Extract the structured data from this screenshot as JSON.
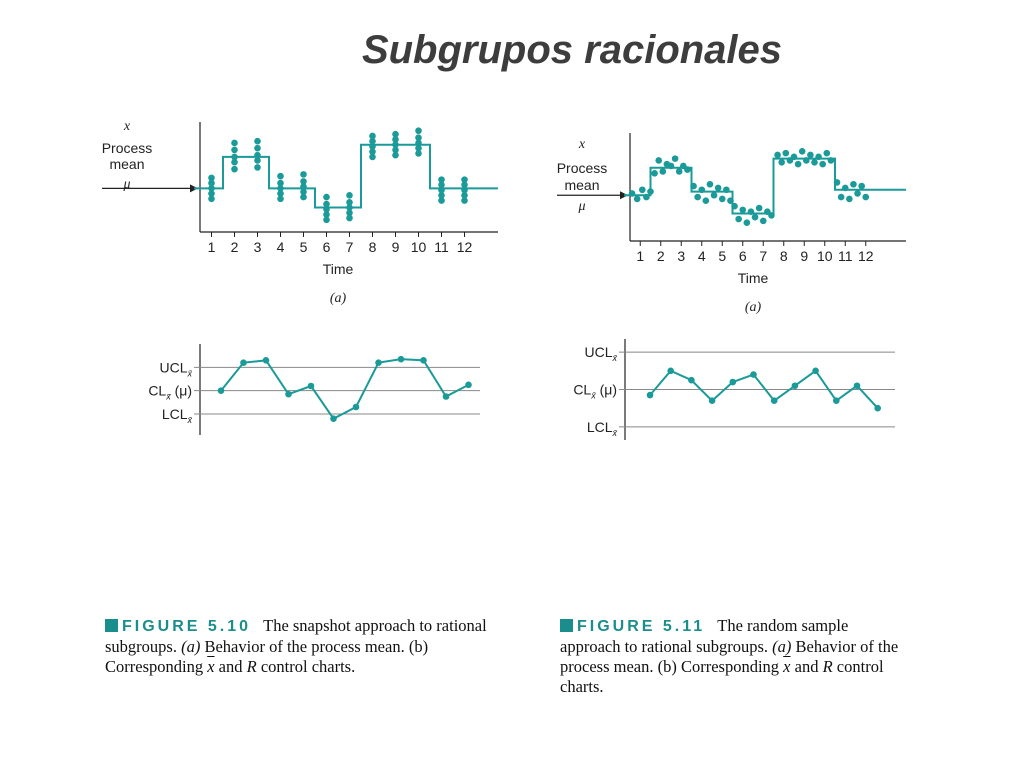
{
  "slide_title": "Subgrupos racionales",
  "colors": {
    "teal": "#1a9a98",
    "axis": "#222222",
    "grid": "#888888",
    "caption_accent": "#1a8e8c"
  },
  "chart_data": [
    {
      "id": "fig510a",
      "type": "scatter",
      "ylabel_lines": [
        "x",
        "Process",
        "mean",
        "μ"
      ],
      "xlabel": "Time",
      "panel_label": "(a)",
      "categories": [
        "1",
        "2",
        "3",
        "4",
        "5",
        "6",
        "7",
        "8",
        "9",
        "10",
        "11",
        "12"
      ],
      "process_mean_levels": [
        0,
        1.8,
        1.8,
        0,
        0,
        -1.1,
        -1.1,
        2.5,
        2.5,
        2.5,
        0,
        0
      ],
      "points": [
        [
          1,
          -0.6
        ],
        [
          1,
          -0.3
        ],
        [
          1,
          0
        ],
        [
          1,
          0.3
        ],
        [
          1,
          0.6
        ],
        [
          2,
          1.1
        ],
        [
          2,
          1.5
        ],
        [
          2,
          1.8
        ],
        [
          2,
          2.2
        ],
        [
          2,
          2.6
        ],
        [
          3,
          1.2
        ],
        [
          3,
          1.6
        ],
        [
          3,
          1.9
        ],
        [
          3,
          2.3
        ],
        [
          3,
          2.7
        ],
        [
          4,
          -0.6
        ],
        [
          4,
          -0.3
        ],
        [
          4,
          0
        ],
        [
          4,
          0.3
        ],
        [
          4,
          0.7
        ],
        [
          5,
          -0.5
        ],
        [
          5,
          -0.2
        ],
        [
          5,
          0.1
        ],
        [
          5,
          0.4
        ],
        [
          5,
          0.8
        ],
        [
          6,
          -1.8
        ],
        [
          6,
          -1.5
        ],
        [
          6,
          -1.2
        ],
        [
          6,
          -0.9
        ],
        [
          6,
          -0.5
        ],
        [
          7,
          -1.7
        ],
        [
          7,
          -1.4
        ],
        [
          7,
          -1.1
        ],
        [
          7,
          -0.8
        ],
        [
          7,
          -0.4
        ],
        [
          8,
          1.8
        ],
        [
          8,
          2.1
        ],
        [
          8,
          2.4
        ],
        [
          8,
          2.7
        ],
        [
          8,
          3.0
        ],
        [
          9,
          1.9
        ],
        [
          9,
          2.2
        ],
        [
          9,
          2.5
        ],
        [
          9,
          2.8
        ],
        [
          9,
          3.1
        ],
        [
          10,
          2.0
        ],
        [
          10,
          2.3
        ],
        [
          10,
          2.6
        ],
        [
          10,
          2.9
        ],
        [
          10,
          3.3
        ],
        [
          11,
          -0.7
        ],
        [
          11,
          -0.4
        ],
        [
          11,
          -0.1
        ],
        [
          11,
          0.2
        ],
        [
          11,
          0.5
        ],
        [
          12,
          -0.7
        ],
        [
          12,
          -0.4
        ],
        [
          12,
          -0.1
        ],
        [
          12,
          0.2
        ],
        [
          12,
          0.5
        ]
      ],
      "ylim": [
        -2.5,
        3.8
      ]
    },
    {
      "id": "fig510b",
      "type": "line",
      "control_limits": {
        "ucl": "UCL",
        "cl": "CL",
        "cl_suffix": "(μ)",
        "lcl": "LCL",
        "subscript_symbol": "x̄"
      },
      "x": [
        1,
        2,
        3,
        4,
        5,
        6,
        7,
        8,
        9,
        10,
        11,
        12
      ],
      "values": [
        0,
        1.2,
        1.3,
        -0.15,
        0.2,
        -1.2,
        -0.7,
        1.2,
        1.35,
        1.3,
        -0.25,
        0.25
      ],
      "limit_values": {
        "ucl": 1.0,
        "cl": 0,
        "lcl": -1.0
      },
      "ylim": [
        -1.9,
        2.0
      ]
    },
    {
      "id": "fig511a",
      "type": "scatter",
      "ylabel_lines": [
        "x",
        "Process",
        "mean",
        "μ"
      ],
      "xlabel": "Time",
      "panel_label": "(a)",
      "categories": [
        "1",
        "2",
        "3",
        "4",
        "5",
        "6",
        "7",
        "8",
        "9",
        "10",
        "11",
        "12"
      ],
      "process_mean_levels": [
        0,
        1.5,
        1.5,
        0.2,
        0.2,
        -1.0,
        -1.0,
        2.0,
        2.0,
        2.0,
        0.3,
        0.3
      ],
      "points": [
        [
          0.6,
          0.1
        ],
        [
          0.85,
          -0.2
        ],
        [
          1.1,
          0.3
        ],
        [
          1.3,
          -0.1
        ],
        [
          1.5,
          0.2
        ],
        [
          1.7,
          1.2
        ],
        [
          1.9,
          1.9
        ],
        [
          2.1,
          1.3
        ],
        [
          2.3,
          1.7
        ],
        [
          2.5,
          1.6
        ],
        [
          2.7,
          2.0
        ],
        [
          2.9,
          1.3
        ],
        [
          3.1,
          1.6
        ],
        [
          3.3,
          1.4
        ],
        [
          3.6,
          0.5
        ],
        [
          3.8,
          -0.1
        ],
        [
          4.0,
          0.3
        ],
        [
          4.2,
          -0.3
        ],
        [
          4.4,
          0.6
        ],
        [
          4.6,
          0.0
        ],
        [
          4.8,
          0.4
        ],
        [
          5.0,
          -0.2
        ],
        [
          5.2,
          0.3
        ],
        [
          5.4,
          -0.3
        ],
        [
          5.6,
          -0.6
        ],
        [
          5.8,
          -1.3
        ],
        [
          6.0,
          -0.8
        ],
        [
          6.2,
          -1.5
        ],
        [
          6.4,
          -0.9
        ],
        [
          6.6,
          -1.2
        ],
        [
          6.8,
          -0.7
        ],
        [
          7.0,
          -1.4
        ],
        [
          7.2,
          -0.9
        ],
        [
          7.4,
          -1.1
        ],
        [
          7.7,
          2.2
        ],
        [
          7.9,
          1.8
        ],
        [
          8.1,
          2.3
        ],
        [
          8.3,
          1.9
        ],
        [
          8.5,
          2.1
        ],
        [
          8.7,
          1.7
        ],
        [
          8.9,
          2.4
        ],
        [
          9.1,
          1.9
        ],
        [
          9.3,
          2.2
        ],
        [
          9.5,
          1.8
        ],
        [
          9.7,
          2.1
        ],
        [
          9.9,
          1.7
        ],
        [
          10.1,
          2.3
        ],
        [
          10.3,
          1.9
        ],
        [
          10.6,
          0.7
        ],
        [
          10.8,
          -0.1
        ],
        [
          11.0,
          0.4
        ],
        [
          11.2,
          -0.2
        ],
        [
          11.4,
          0.6
        ],
        [
          11.6,
          0.1
        ],
        [
          11.8,
          0.5
        ],
        [
          12.0,
          -0.1
        ]
      ],
      "ylim": [
        -2.5,
        3.4
      ]
    },
    {
      "id": "fig511b",
      "type": "line",
      "control_limits": {
        "ucl": "UCL",
        "cl": "CL",
        "cl_suffix": "(μ)",
        "lcl": "LCL",
        "subscript_symbol": "x̄"
      },
      "x": [
        1,
        2,
        3,
        4,
        5,
        6,
        7,
        8,
        9,
        10,
        11,
        12
      ],
      "values": [
        -0.15,
        0.5,
        0.25,
        -0.3,
        0.2,
        0.4,
        -0.3,
        0.1,
        0.5,
        -0.3,
        0.1,
        -0.5
      ],
      "limit_values": {
        "ucl": 1.0,
        "cl": 0,
        "lcl": -1.0
      },
      "ylim": [
        -1.35,
        1.35
      ]
    }
  ],
  "captions": [
    {
      "figure_label": "FIGURE 5.10",
      "text_1": "The snapshot approach to rational subgroups. ",
      "part_a": "(a)",
      "text_2": " Behavior of the process mean. ",
      "part_b": "(b)",
      "text_3": " Corresponding ",
      "xbar": "x",
      "text_4": " and ",
      "r": "R",
      "text_5": " control charts."
    },
    {
      "figure_label": "FIGURE 5.11",
      "text_1": "The random sample approach to rational subgroups. ",
      "part_a": "(a)",
      "text_2": " Behavior of the process mean. ",
      "part_b": "(b)",
      "text_3": " Corresponding ",
      "xbar": "x",
      "text_4": " and ",
      "r": "R",
      "text_5": " control charts."
    }
  ]
}
